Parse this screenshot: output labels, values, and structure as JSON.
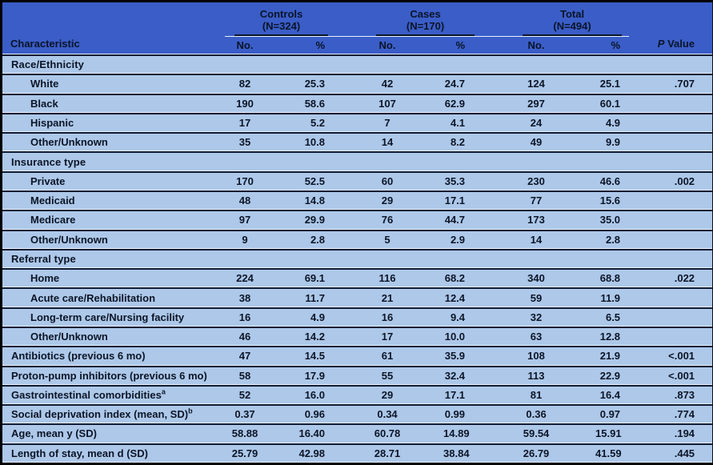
{
  "colors": {
    "header_bg": "#3a5dc7",
    "row_bg": "#adc8e9",
    "divider_dark": "#101b33",
    "divider_light": "#e9f1fb",
    "outer_border": "#000000",
    "text": "#0c1526"
  },
  "header": {
    "characteristic_label": "Characteristic",
    "p_value": {
      "italic": "P",
      "rest": " Value"
    },
    "groups": [
      {
        "title": "Controls",
        "n": "(N=324)",
        "no": "No.",
        "pct": "%"
      },
      {
        "title": "Cases",
        "n": "(N=170)",
        "no": "No.",
        "pct": "%"
      },
      {
        "title": "Total",
        "n": "(N=494)",
        "no": "No.",
        "pct": "%"
      }
    ]
  },
  "rows": [
    {
      "type": "section",
      "label": "Race/Ethnicity"
    },
    {
      "type": "item",
      "label": "White",
      "controls_no": "82",
      "controls_pct": "25.3",
      "cases_no": "42",
      "cases_pct": "24.7",
      "total_no": "124",
      "total_pct": "25.1",
      "p_value": ".707"
    },
    {
      "type": "item",
      "label": "Black",
      "controls_no": "190",
      "controls_pct": "58.6",
      "cases_no": "107",
      "cases_pct": "62.9",
      "total_no": "297",
      "total_pct": "60.1",
      "p_value": ""
    },
    {
      "type": "item",
      "label": "Hispanic",
      "controls_no": "17",
      "controls_pct": "5.2",
      "cases_no": "7",
      "cases_pct": "4.1",
      "total_no": "24",
      "total_pct": "4.9",
      "p_value": ""
    },
    {
      "type": "item",
      "label": "Other/Unknown",
      "controls_no": "35",
      "controls_pct": "10.8",
      "cases_no": "14",
      "cases_pct": "8.2",
      "total_no": "49",
      "total_pct": "9.9",
      "p_value": ""
    },
    {
      "type": "section",
      "label": "Insurance type"
    },
    {
      "type": "item",
      "label": "Private",
      "controls_no": "170",
      "controls_pct": "52.5",
      "cases_no": "60",
      "cases_pct": "35.3",
      "total_no": "230",
      "total_pct": "46.6",
      "p_value": ".002"
    },
    {
      "type": "item",
      "label": "Medicaid",
      "controls_no": "48",
      "controls_pct": "14.8",
      "cases_no": "29",
      "cases_pct": "17.1",
      "total_no": "77",
      "total_pct": "15.6",
      "p_value": ""
    },
    {
      "type": "item",
      "label": "Medicare",
      "controls_no": "97",
      "controls_pct": "29.9",
      "cases_no": "76",
      "cases_pct": "44.7",
      "total_no": "173",
      "total_pct": "35.0",
      "p_value": ""
    },
    {
      "type": "item",
      "label": "Other/Unknown",
      "controls_no": "9",
      "controls_pct": "2.8",
      "cases_no": "5",
      "cases_pct": "2.9",
      "total_no": "14",
      "total_pct": "2.8",
      "p_value": ""
    },
    {
      "type": "section",
      "label": "Referral type"
    },
    {
      "type": "item",
      "label": "Home",
      "controls_no": "224",
      "controls_pct": "69.1",
      "cases_no": "116",
      "cases_pct": "68.2",
      "total_no": "340",
      "total_pct": "68.8",
      "p_value": ".022"
    },
    {
      "type": "item",
      "label": "Acute care/Rehabilitation",
      "controls_no": "38",
      "controls_pct": "11.7",
      "cases_no": "21",
      "cases_pct": "12.4",
      "total_no": "59",
      "total_pct": "11.9",
      "p_value": ""
    },
    {
      "type": "item",
      "label": "Long-term care/Nursing facility",
      "controls_no": "16",
      "controls_pct": "4.9",
      "cases_no": "16",
      "cases_pct": "9.4",
      "total_no": "32",
      "total_pct": "6.5",
      "p_value": ""
    },
    {
      "type": "item",
      "label": "Other/Unknown",
      "controls_no": "46",
      "controls_pct": "14.2",
      "cases_no": "17",
      "cases_pct": "10.0",
      "total_no": "63",
      "total_pct": "12.8",
      "p_value": ""
    },
    {
      "type": "row",
      "label": "Antibiotics (previous 6 mo)",
      "controls_no": "47",
      "controls_pct": "14.5",
      "cases_no": "61",
      "cases_pct": "35.9",
      "total_no": "108",
      "total_pct": "21.9",
      "p_value": "<.001"
    },
    {
      "type": "row",
      "label": "Proton-pump inhibitors (previous 6 mo)",
      "controls_no": "58",
      "controls_pct": "17.9",
      "cases_no": "55",
      "cases_pct": "32.4",
      "total_no": "113",
      "total_pct": "22.9",
      "p_value": "<.001"
    },
    {
      "type": "row",
      "label": "Gastrointestinal comorbidities",
      "sup": "a",
      "controls_no": "52",
      "controls_pct": "16.0",
      "cases_no": "29",
      "cases_pct": "17.1",
      "total_no": "81",
      "total_pct": "16.4",
      "p_value": ".873"
    },
    {
      "type": "row",
      "label": "Social deprivation index (mean, SD)",
      "sup": "b",
      "controls_no": "0.37",
      "controls_pct": "0.96",
      "cases_no": "0.34",
      "cases_pct": "0.99",
      "total_no": "0.36",
      "total_pct": "0.97",
      "p_value": ".774"
    },
    {
      "type": "row",
      "label": "Age, mean y (SD)",
      "controls_no": "58.88",
      "controls_pct": "16.40",
      "cases_no": "60.78",
      "cases_pct": "14.89",
      "total_no": "59.54",
      "total_pct": "15.91",
      "p_value": ".194"
    },
    {
      "type": "row",
      "label": "Length of stay, mean d (SD)",
      "controls_no": "25.79",
      "controls_pct": "42.98",
      "cases_no": "28.71",
      "cases_pct": "38.84",
      "total_no": "26.79",
      "total_pct": "41.59",
      "p_value": ".445"
    }
  ]
}
